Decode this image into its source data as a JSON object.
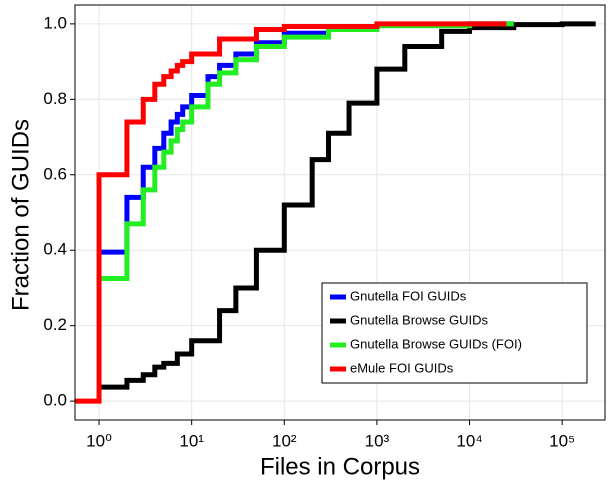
{
  "chart_data": {
    "type": "step",
    "xlabel": "Files in Corpus",
    "ylabel": "Fraction of GUIDs",
    "xscale": "log",
    "xlim": [
      0.55,
      290000
    ],
    "ylim": [
      -0.05,
      1.05
    ],
    "xticks": [
      {
        "value": 1,
        "label": "10⁰"
      },
      {
        "value": 10,
        "label": "10¹"
      },
      {
        "value": 100,
        "label": "10²"
      },
      {
        "value": 1000,
        "label": "10³"
      },
      {
        "value": 10000,
        "label": "10⁴"
      },
      {
        "value": 100000,
        "label": "10⁵"
      }
    ],
    "yticks": [
      {
        "value": 0,
        "label": "0.0"
      },
      0.2,
      0.4,
      0.6,
      0.8,
      {
        "value": 1,
        "label": "1.0"
      }
    ],
    "grid": true,
    "legend": "bottom-right",
    "series": [
      {
        "name": "Gnutella FOI GUIDs",
        "color": "#0000ff",
        "x": [
          1,
          2,
          3,
          4,
          5,
          6,
          7,
          8,
          10,
          15,
          20,
          30,
          50,
          100,
          300,
          1000,
          10000,
          30000
        ],
        "values": [
          0.395,
          0.54,
          0.62,
          0.67,
          0.71,
          0.74,
          0.76,
          0.78,
          0.81,
          0.86,
          0.89,
          0.92,
          0.95,
          0.975,
          0.99,
          0.997,
          1.0,
          1.0
        ]
      },
      {
        "name": "Gnutella Browse GUIDs",
        "color": "#000000",
        "x": [
          1,
          2,
          3,
          4,
          5,
          7,
          10,
          20,
          30,
          50,
          100,
          200,
          300,
          500,
          1000,
          2000,
          5000,
          10000,
          30000,
          100000,
          230000
        ],
        "values": [
          0.037,
          0.055,
          0.07,
          0.09,
          0.1,
          0.125,
          0.16,
          0.24,
          0.3,
          0.4,
          0.52,
          0.64,
          0.71,
          0.79,
          0.88,
          0.94,
          0.98,
          0.99,
          0.998,
          1.0,
          1.0
        ]
      },
      {
        "name": "Gnutella Browse GUIDs (FOI)",
        "color": "#22ee22",
        "x": [
          1,
          2,
          3,
          4,
          5,
          6,
          7,
          8,
          10,
          15,
          20,
          30,
          50,
          100,
          300,
          1000,
          10000,
          30000
        ],
        "values": [
          0.325,
          0.47,
          0.56,
          0.62,
          0.66,
          0.69,
          0.72,
          0.74,
          0.78,
          0.84,
          0.87,
          0.905,
          0.94,
          0.965,
          0.985,
          0.995,
          1.0,
          1.0
        ]
      },
      {
        "name": "eMule FOI GUIDs",
        "color": "#ff0000",
        "x": [
          0.55,
          1,
          2,
          3,
          4,
          5,
          6,
          7,
          8,
          10,
          20,
          50,
          100,
          1000,
          25000
        ],
        "values": [
          0,
          0.6,
          0.74,
          0.8,
          0.84,
          0.86,
          0.875,
          0.89,
          0.9,
          0.92,
          0.96,
          0.985,
          0.993,
          1.0,
          1.0
        ]
      }
    ]
  }
}
